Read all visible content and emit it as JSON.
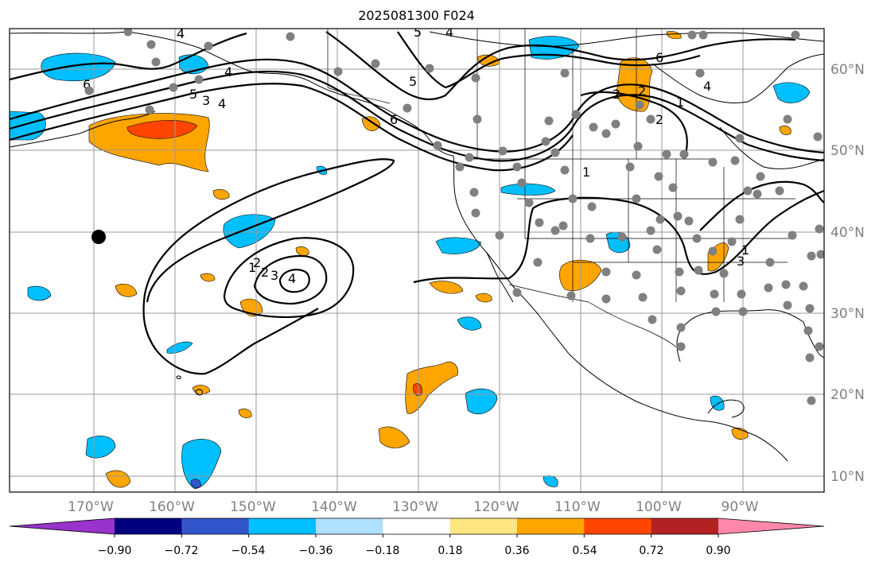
{
  "title": "2025081300 F024",
  "map": {
    "lon_min": -180,
    "lon_max": -80,
    "lat_min": 8,
    "lat_max": 65,
    "lon_labels": [
      "170°W",
      "160°W",
      "150°W",
      "140°W",
      "130°W",
      "120°W",
      "110°W",
      "100°W",
      "90°W"
    ],
    "lat_labels": [
      "60°N",
      "50°N",
      "40°N",
      "30°N",
      "20°N",
      "10°N"
    ]
  },
  "colorbar": {
    "ticks": [
      "−0.90",
      "−0.72",
      "−0.54",
      "−0.36",
      "−0.18",
      "0.18",
      "0.36",
      "0.54",
      "0.72",
      "0.90"
    ],
    "colors": [
      "#9933cc",
      "#000080",
      "#3355cc",
      "#00bfff",
      "#b0e0ff",
      "#ffffff",
      "#ffe680",
      "#ffa500",
      "#ff4500",
      "#b22222",
      "#ff88aa"
    ]
  },
  "contour_labels": [
    "4",
    "5",
    "4",
    "5",
    "6",
    "4",
    "6",
    "5",
    "3",
    "4",
    "2",
    "1",
    "6",
    "2",
    "4",
    "2",
    "1",
    "1",
    "3",
    "2",
    "1",
    "2",
    "3",
    "4"
  ],
  "marker_colors": {
    "station": "#808080",
    "black_dot": "#000000"
  }
}
